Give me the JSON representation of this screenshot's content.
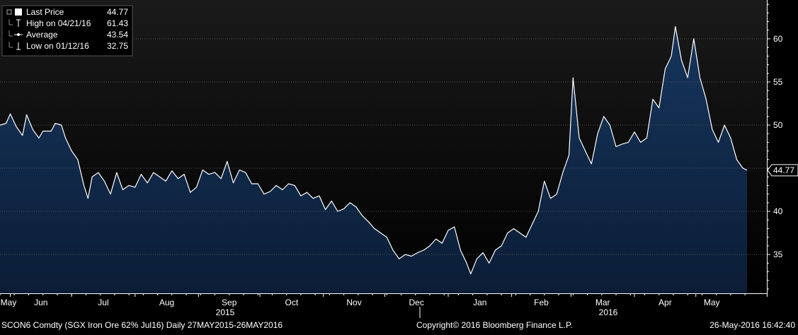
{
  "chart_data": {
    "type": "area",
    "legend": {
      "placement": "top-left",
      "items": [
        {
          "label": "Last Price",
          "value": "44.77",
          "icon": "filled-square-icon"
        },
        {
          "label": "High on 04/21/16",
          "value": "61.43",
          "icon": "high-marker-icon"
        },
        {
          "label": "Average",
          "value": "43.54",
          "icon": "average-marker-icon"
        },
        {
          "label": "Low on 01/12/16",
          "value": "32.75",
          "icon": "low-marker-icon"
        }
      ]
    },
    "last_value_label": "44.77",
    "y_axis": {
      "side": "right",
      "ticks": [
        "35",
        "40",
        "45",
        "50",
        "55",
        "60"
      ],
      "ylim": [
        30.5,
        64.5
      ]
    },
    "x_axis": {
      "months": [
        "May",
        "Jun",
        "Jul",
        "Aug",
        "Sep",
        "Oct",
        "Nov",
        "Dec",
        "Jan",
        "Feb",
        "Mar",
        "Apr",
        "May"
      ],
      "years": [
        "2015",
        "2016"
      ],
      "start": "2015-05-27",
      "end": "2016-05-26"
    },
    "series": [
      {
        "values": [
          [
            "2015-05-27",
            50.0
          ],
          [
            "2015-05-30",
            50.2
          ],
          [
            "2015-06-01",
            51.3
          ],
          [
            "2015-06-04",
            49.8
          ],
          [
            "2015-06-07",
            48.8
          ],
          [
            "2015-06-09",
            51.2
          ],
          [
            "2015-06-12",
            49.5
          ],
          [
            "2015-06-15",
            48.5
          ],
          [
            "2015-06-17",
            49.3
          ],
          [
            "2015-06-21",
            49.3
          ],
          [
            "2015-06-23",
            50.2
          ],
          [
            "2015-06-26",
            50.0
          ],
          [
            "2015-06-28",
            48.5
          ],
          [
            "2015-07-01",
            47.0
          ],
          [
            "2015-07-04",
            46.0
          ],
          [
            "2015-07-07",
            43.0
          ],
          [
            "2015-07-09",
            41.5
          ],
          [
            "2015-07-11",
            44.0
          ],
          [
            "2015-07-14",
            44.5
          ],
          [
            "2015-07-17",
            43.5
          ],
          [
            "2015-07-20",
            42.0
          ],
          [
            "2015-07-23",
            44.5
          ],
          [
            "2015-07-26",
            42.5
          ],
          [
            "2015-07-29",
            43.0
          ],
          [
            "2015-08-01",
            42.8
          ],
          [
            "2015-08-04",
            44.3
          ],
          [
            "2015-08-07",
            43.3
          ],
          [
            "2015-08-10",
            44.5
          ],
          [
            "2015-08-13",
            44.0
          ],
          [
            "2015-08-16",
            43.5
          ],
          [
            "2015-08-19",
            44.7
          ],
          [
            "2015-08-22",
            43.8
          ],
          [
            "2015-08-25",
            44.3
          ],
          [
            "2015-08-28",
            42.2
          ],
          [
            "2015-08-31",
            42.8
          ],
          [
            "2015-09-03",
            44.8
          ],
          [
            "2015-09-06",
            44.3
          ],
          [
            "2015-09-09",
            44.5
          ],
          [
            "2015-09-12",
            43.8
          ],
          [
            "2015-09-15",
            45.8
          ],
          [
            "2015-09-18",
            43.3
          ],
          [
            "2015-09-21",
            44.8
          ],
          [
            "2015-09-24",
            44.5
          ],
          [
            "2015-09-27",
            43.2
          ],
          [
            "2015-09-30",
            43.2
          ],
          [
            "2015-10-03",
            42.0
          ],
          [
            "2015-10-06",
            42.3
          ],
          [
            "2015-10-09",
            43.0
          ],
          [
            "2015-10-12",
            42.5
          ],
          [
            "2015-10-15",
            43.2
          ],
          [
            "2015-10-18",
            43.0
          ],
          [
            "2015-10-21",
            41.8
          ],
          [
            "2015-10-24",
            42.2
          ],
          [
            "2015-10-27",
            41.5
          ],
          [
            "2015-10-30",
            41.8
          ],
          [
            "2015-11-02",
            40.2
          ],
          [
            "2015-11-05",
            41.2
          ],
          [
            "2015-11-08",
            40.0
          ],
          [
            "2015-11-11",
            40.3
          ],
          [
            "2015-11-14",
            41.0
          ],
          [
            "2015-11-17",
            40.5
          ],
          [
            "2015-11-20",
            39.5
          ],
          [
            "2015-11-23",
            38.8
          ],
          [
            "2015-11-26",
            38.0
          ],
          [
            "2015-11-29",
            37.5
          ],
          [
            "2015-12-02",
            37.0
          ],
          [
            "2015-12-05",
            35.5
          ],
          [
            "2015-12-08",
            34.5
          ],
          [
            "2015-12-11",
            35.0
          ],
          [
            "2015-12-14",
            34.8
          ],
          [
            "2015-12-17",
            35.2
          ],
          [
            "2015-12-20",
            35.5
          ],
          [
            "2015-12-23",
            36.0
          ],
          [
            "2015-12-26",
            36.8
          ],
          [
            "2015-12-29",
            36.3
          ],
          [
            "2016-01-01",
            37.8
          ],
          [
            "2016-01-04",
            38.2
          ],
          [
            "2016-01-07",
            35.5
          ],
          [
            "2016-01-10",
            34.0
          ],
          [
            "2016-01-12",
            32.75
          ],
          [
            "2016-01-15",
            34.5
          ],
          [
            "2016-01-18",
            35.2
          ],
          [
            "2016-01-21",
            34.0
          ],
          [
            "2016-01-24",
            35.5
          ],
          [
            "2016-01-27",
            36.0
          ],
          [
            "2016-01-30",
            37.5
          ],
          [
            "2016-02-02",
            38.0
          ],
          [
            "2016-02-05",
            37.5
          ],
          [
            "2016-02-08",
            37.0
          ],
          [
            "2016-02-11",
            38.5
          ],
          [
            "2016-02-14",
            40.0
          ],
          [
            "2016-02-17",
            43.5
          ],
          [
            "2016-02-20",
            41.5
          ],
          [
            "2016-02-23",
            42.0
          ],
          [
            "2016-02-26",
            44.5
          ],
          [
            "2016-02-29",
            46.5
          ],
          [
            "2016-03-02",
            55.5
          ],
          [
            "2016-03-05",
            48.5
          ],
          [
            "2016-03-08",
            47.0
          ],
          [
            "2016-03-11",
            45.5
          ],
          [
            "2016-03-14",
            49.0
          ],
          [
            "2016-03-17",
            51.0
          ],
          [
            "2016-03-20",
            50.0
          ],
          [
            "2016-03-23",
            47.5
          ],
          [
            "2016-03-26",
            47.8
          ],
          [
            "2016-03-29",
            48.0
          ],
          [
            "2016-04-01",
            49.2
          ],
          [
            "2016-04-04",
            48.0
          ],
          [
            "2016-04-07",
            48.5
          ],
          [
            "2016-04-10",
            53.0
          ],
          [
            "2016-04-13",
            52.0
          ],
          [
            "2016-04-16",
            56.5
          ],
          [
            "2016-04-19",
            58.0
          ],
          [
            "2016-04-21",
            61.43
          ],
          [
            "2016-04-24",
            57.5
          ],
          [
            "2016-04-27",
            55.5
          ],
          [
            "2016-04-30",
            60.0
          ],
          [
            "2016-05-03",
            55.5
          ],
          [
            "2016-05-06",
            53.0
          ],
          [
            "2016-05-09",
            49.5
          ],
          [
            "2016-05-12",
            48.0
          ],
          [
            "2016-05-15",
            50.0
          ],
          [
            "2016-05-18",
            48.5
          ],
          [
            "2016-05-21",
            46.0
          ],
          [
            "2016-05-24",
            45.0
          ],
          [
            "2016-05-26",
            44.77
          ]
        ]
      }
    ]
  },
  "footer": {
    "ticker": "SCON6 Comdty (SGX Iron Ore 62%  Jul16)  Daily 27MAY2015-26MAY2016",
    "copyright": "Copyright© 2016 Bloomberg Finance L.P.",
    "timestamp": "26-May-2016 16:42:40"
  },
  "colors": {
    "background": "#000000",
    "plot_upper": "#1a1a1a",
    "area_top": "#16355c",
    "area_bottom": "#0b1d36",
    "line": "#ffffff",
    "grid": "#5a5a5a"
  }
}
